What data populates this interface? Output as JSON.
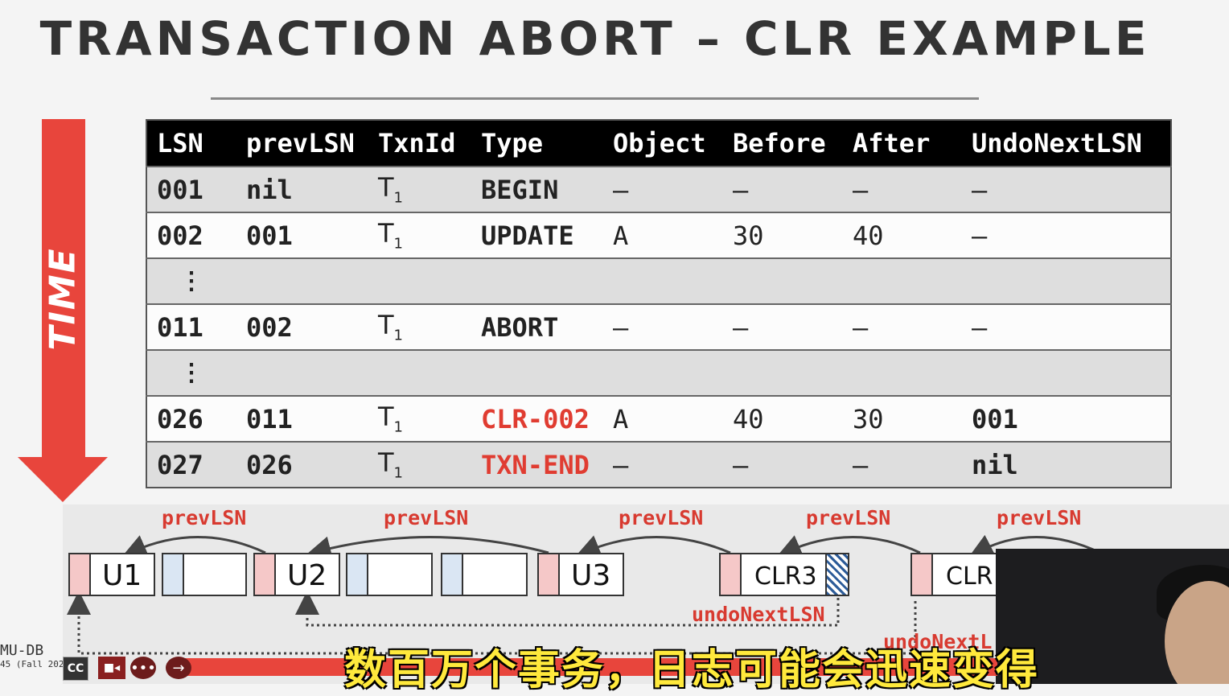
{
  "slide": {
    "title": "TRANSACTION ABORT – CLR EXAMPLE",
    "time_label": "TIME"
  },
  "table": {
    "headers": [
      "LSN",
      "prevLSN",
      "TxnId",
      "Type",
      "Object",
      "Before",
      "After",
      "UndoNextLSN"
    ],
    "rows": [
      {
        "lsn": "001",
        "prev": "nil",
        "txn": "T",
        "sub": "1",
        "type": "BEGIN",
        "obj": "–",
        "before": "–",
        "after": "–",
        "undo": "–"
      },
      {
        "lsn": "002",
        "prev": "001",
        "txn": "T",
        "sub": "1",
        "type": "UPDATE",
        "obj": "A",
        "before": "30",
        "after": "40",
        "undo": "–"
      },
      {
        "lsn": "⋮"
      },
      {
        "lsn": "011",
        "prev": "002",
        "txn": "T",
        "sub": "1",
        "type": "ABORT",
        "obj": "–",
        "before": "–",
        "after": "–",
        "undo": "–"
      },
      {
        "lsn": "⋮"
      },
      {
        "lsn": "026",
        "prev": "011",
        "txn": "T",
        "sub": "1",
        "type": "CLR-002",
        "obj": "A",
        "before": "40",
        "after": "30",
        "undo": "001"
      },
      {
        "lsn": "027",
        "prev": "026",
        "txn": "T",
        "sub": "1",
        "type": "TXN-END",
        "obj": "–",
        "before": "–",
        "after": "–",
        "undo": "nil"
      }
    ]
  },
  "diagram": {
    "prev_label": "prevLSN",
    "undo_label": "undoNextLSN",
    "undo_label_partial": "undoNextL",
    "records": [
      "U1",
      "U2",
      "U3",
      "CLR3",
      "CLR"
    ]
  },
  "player": {
    "cc_label": "CC",
    "logo_text": "MU-DB",
    "logo_sub": "45 (Fall 202"
  },
  "subtitle": "数百万个事务，日志可能会迅速变得",
  "colors": {
    "accent_red": "#e8453c",
    "header_black": "#000000",
    "subtitle_yellow": "#ffe93c"
  }
}
